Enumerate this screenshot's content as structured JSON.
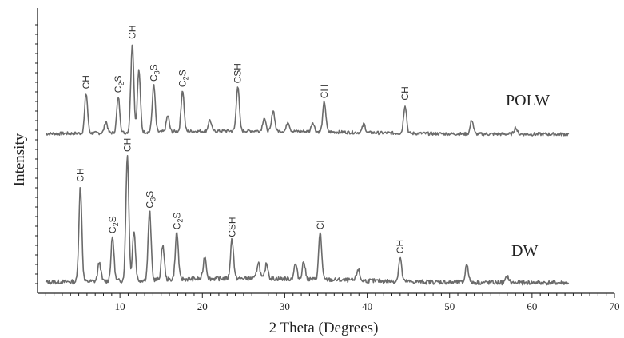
{
  "chart_data": {
    "type": "line",
    "xlabel": "2 Theta (Degrees)",
    "ylabel": "Intensity",
    "xlim": [
      0,
      70
    ],
    "x_ticks": [
      10,
      20,
      30,
      40,
      50,
      60,
      70
    ],
    "grid": false,
    "series": [
      {
        "name": "POLW",
        "color": "#6b6b6b",
        "peaks": [
          {
            "x": 5.9,
            "h": 0.42,
            "label": "CH"
          },
          {
            "x": 8.3,
            "h": 0.12,
            "label": ""
          },
          {
            "x": 9.8,
            "h": 0.38,
            "label": "C2S"
          },
          {
            "x": 11.5,
            "h": 0.95,
            "label": "CH"
          },
          {
            "x": 12.3,
            "h": 0.66,
            "label": ""
          },
          {
            "x": 14.1,
            "h": 0.5,
            "label": "C3S"
          },
          {
            "x": 15.8,
            "h": 0.17,
            "label": ""
          },
          {
            "x": 17.6,
            "h": 0.44,
            "label": "C2S"
          },
          {
            "x": 20.9,
            "h": 0.12,
            "label": ""
          },
          {
            "x": 24.3,
            "h": 0.48,
            "label": "CSH"
          },
          {
            "x": 27.5,
            "h": 0.14,
            "label": ""
          },
          {
            "x": 28.6,
            "h": 0.22,
            "label": ""
          },
          {
            "x": 30.4,
            "h": 0.1,
            "label": ""
          },
          {
            "x": 33.4,
            "h": 0.1,
            "label": ""
          },
          {
            "x": 34.8,
            "h": 0.32,
            "label": "CH"
          },
          {
            "x": 39.6,
            "h": 0.09,
            "label": ""
          },
          {
            "x": 44.6,
            "h": 0.3,
            "label": "CH"
          },
          {
            "x": 52.7,
            "h": 0.15,
            "label": ""
          },
          {
            "x": 58.0,
            "h": 0.07,
            "label": ""
          }
        ],
        "label": "POLW"
      },
      {
        "name": "DW",
        "color": "#6b6b6b",
        "peaks": [
          {
            "x": 5.2,
            "h": 0.76,
            "label": "CH"
          },
          {
            "x": 7.5,
            "h": 0.15,
            "label": ""
          },
          {
            "x": 9.1,
            "h": 0.35,
            "label": "C2S"
          },
          {
            "x": 10.9,
            "h": 1.0,
            "label": "CH"
          },
          {
            "x": 11.7,
            "h": 0.4,
            "label": ""
          },
          {
            "x": 13.6,
            "h": 0.55,
            "label": "C3S"
          },
          {
            "x": 15.2,
            "h": 0.28,
            "label": ""
          },
          {
            "x": 16.9,
            "h": 0.38,
            "label": "C2S"
          },
          {
            "x": 20.3,
            "h": 0.18,
            "label": ""
          },
          {
            "x": 23.6,
            "h": 0.32,
            "label": "CSH"
          },
          {
            "x": 26.8,
            "h": 0.13,
            "label": ""
          },
          {
            "x": 27.8,
            "h": 0.12,
            "label": ""
          },
          {
            "x": 31.3,
            "h": 0.12,
            "label": ""
          },
          {
            "x": 32.3,
            "h": 0.14,
            "label": ""
          },
          {
            "x": 34.3,
            "h": 0.38,
            "label": "CH"
          },
          {
            "x": 38.9,
            "h": 0.09,
            "label": ""
          },
          {
            "x": 44.0,
            "h": 0.19,
            "label": "CH"
          },
          {
            "x": 52.1,
            "h": 0.15,
            "label": ""
          },
          {
            "x": 57.0,
            "h": 0.05,
            "label": ""
          }
        ],
        "label": "DW"
      }
    ]
  }
}
